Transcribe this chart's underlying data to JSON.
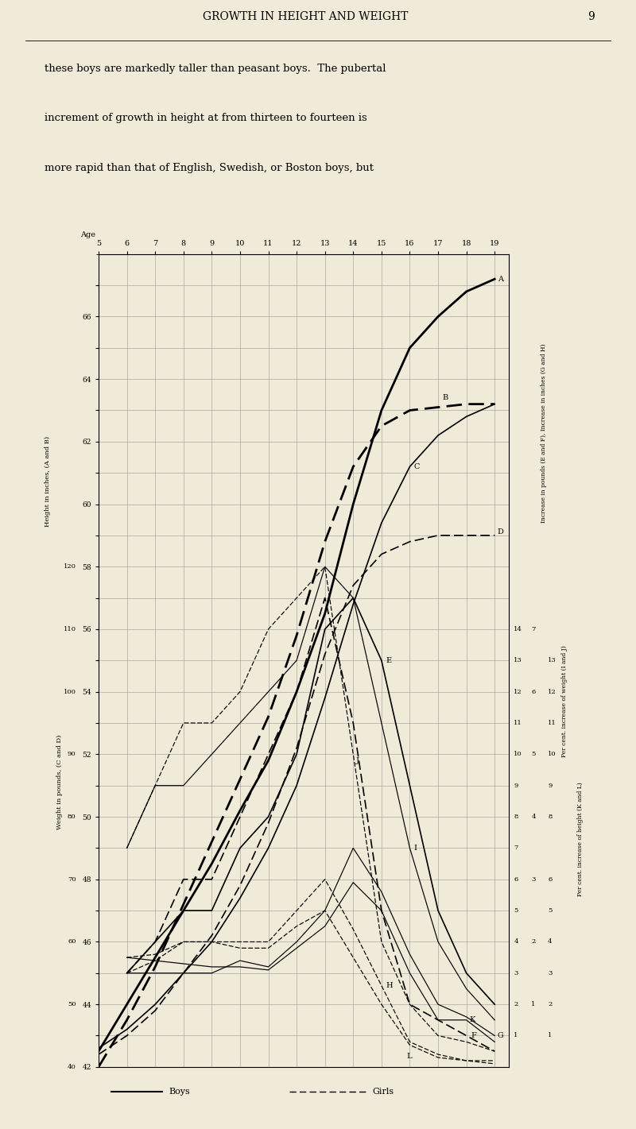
{
  "bg": "#f0ead8",
  "page_title": "GROWTH IN HEIGHT AND WEIGHT",
  "page_number": "9",
  "text_line1": "these boys are markedly taller than peasant boys.  The pubertal",
  "text_line2": "increment of growth in height at from thirteen to fourteen is",
  "text_line3": "more rapid than that of English, Swedish, or Boston boys, but",
  "ages": [
    5,
    6,
    7,
    8,
    9,
    10,
    11,
    12,
    13,
    14,
    15,
    16,
    17,
    18,
    19
  ],
  "A": [
    42.5,
    44.0,
    45.5,
    47.0,
    48.5,
    50.2,
    51.8,
    54.0,
    56.5,
    60.0,
    63.0,
    65.0,
    66.0,
    66.8,
    67.2
  ],
  "B": [
    42.0,
    43.5,
    45.2,
    47.2,
    49.2,
    51.2,
    53.2,
    55.8,
    58.8,
    61.2,
    62.5,
    63.0,
    63.1,
    63.2,
    63.2
  ],
  "C_lbs": [
    43,
    46,
    50,
    55,
    60,
    67,
    75,
    85,
    99,
    114,
    127,
    136,
    141,
    144,
    146
  ],
  "D_lbs": [
    42,
    45,
    49,
    55,
    61,
    69,
    79,
    91,
    106,
    117,
    122,
    124,
    125,
    125,
    125
  ],
  "E_lbs_inc": [
    null,
    3.0,
    4.0,
    5.0,
    5.0,
    7.0,
    8.0,
    10.0,
    14.0,
    15.0,
    13.0,
    9.0,
    5.0,
    3.0,
    2.0
  ],
  "F_lbs_inc": [
    null,
    3.0,
    4.0,
    6.0,
    6.0,
    8.0,
    10.0,
    12.0,
    15.0,
    11.0,
    5.0,
    2.0,
    1.5,
    1.0,
    0.5
  ],
  "G_in_inc": [
    null,
    1.5,
    1.5,
    1.5,
    1.5,
    1.7,
    1.6,
    2.0,
    2.5,
    3.5,
    2.8,
    1.8,
    1.0,
    0.8,
    0.5
  ],
  "H_in_inc": [
    null,
    1.5,
    1.7,
    2.0,
    2.0,
    2.0,
    2.0,
    2.5,
    3.0,
    2.2,
    1.3,
    0.4,
    0.2,
    0.1,
    0.1
  ],
  "I_pct_wt": [
    null,
    7.0,
    9.0,
    9.0,
    10.0,
    11.0,
    12.0,
    13.0,
    16.0,
    15.0,
    11.0,
    7.0,
    4.0,
    2.5,
    1.5
  ],
  "J_pct_wt": [
    null,
    7.0,
    9.0,
    11.0,
    11.0,
    12.0,
    14.0,
    15.0,
    16.0,
    10.0,
    4.0,
    2.0,
    1.0,
    0.8,
    0.5
  ],
  "K_pct_ht": [
    null,
    3.5,
    3.4,
    3.3,
    3.2,
    3.2,
    3.1,
    3.8,
    4.5,
    5.9,
    5.0,
    3.0,
    1.5,
    1.5,
    0.8
  ],
  "L_pct_ht": [
    null,
    3.5,
    3.6,
    4.0,
    4.0,
    3.8,
    3.8,
    4.5,
    5.0,
    3.5,
    2.0,
    0.7,
    0.3,
    0.2,
    0.1
  ]
}
